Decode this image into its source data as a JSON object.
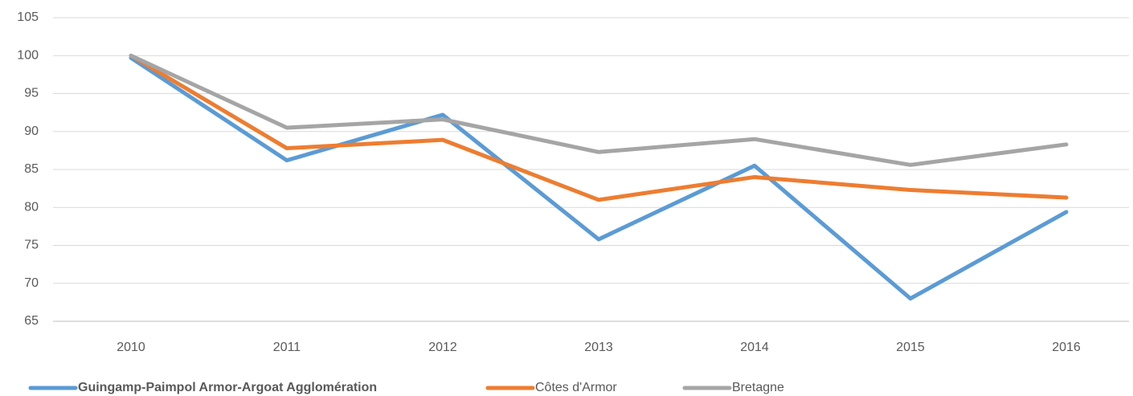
{
  "chart_data": {
    "type": "line",
    "categories": [
      "2010",
      "2011",
      "2012",
      "2013",
      "2014",
      "2015",
      "2016"
    ],
    "series": [
      {
        "name": "Guingamp-Paimpol Armor-Argoat Agglomération",
        "color": "#5b9bd5",
        "values": [
          99.7,
          86.2,
          92.2,
          75.8,
          85.5,
          68.0,
          79.4
        ]
      },
      {
        "name": "Côtes d'Armor",
        "color": "#ed7d31",
        "values": [
          100,
          87.8,
          88.9,
          81.0,
          84.0,
          82.3,
          81.3
        ]
      },
      {
        "name": "Bretagne",
        "color": "#a5a5a5",
        "values": [
          100,
          90.5,
          91.6,
          87.3,
          89.0,
          85.6,
          88.3
        ]
      }
    ],
    "ylim": [
      65,
      105
    ],
    "yticks": [
      65,
      70,
      75,
      80,
      85,
      90,
      95,
      100,
      105
    ],
    "grid": true,
    "legend": "bottom"
  }
}
